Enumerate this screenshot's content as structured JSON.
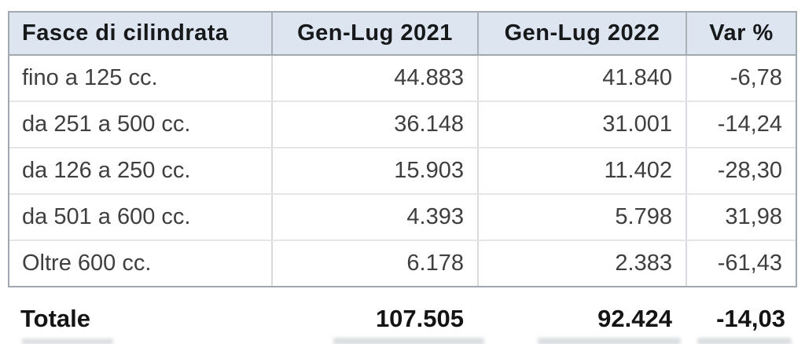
{
  "table": {
    "headers": {
      "category": "Fasce di cilindrata",
      "period1": "Gen-Lug 2021",
      "period2": "Gen-Lug 2022",
      "variation": "Var %"
    },
    "rows": [
      {
        "label": "fino a 125 cc.",
        "y2021": "44.883",
        "y2022": "41.840",
        "var": "-6,78"
      },
      {
        "label": "da 251 a 500 cc.",
        "y2021": "36.148",
        "y2022": "31.001",
        "var": "-14,24"
      },
      {
        "label": "da 126 a 250 cc.",
        "y2021": "15.903",
        "y2022": "11.402",
        "var": "-28,30"
      },
      {
        "label": "da 501 a 600 cc.",
        "y2021": "4.393",
        "y2022": "5.798",
        "var": "31,98"
      },
      {
        "label": "Oltre 600 cc.",
        "y2021": "6.178",
        "y2022": "2.383",
        "var": "-61,43"
      }
    ],
    "totals": {
      "label": "Totale",
      "y2021": "107.505",
      "y2022": "92.424",
      "var": "-14,03"
    }
  },
  "chart_data": {
    "type": "table",
    "title": "",
    "columns": [
      "Fasce di cilindrata",
      "Gen-Lug 2021",
      "Gen-Lug 2022",
      "Var %"
    ],
    "rows": [
      {
        "category": "fino a 125 cc.",
        "gen_lug_2021": 44883,
        "gen_lug_2022": 41840,
        "var_pct": -6.78
      },
      {
        "category": "da 251 a 500 cc.",
        "gen_lug_2021": 36148,
        "gen_lug_2022": 31001,
        "var_pct": -14.24
      },
      {
        "category": "da 126 a 250 cc.",
        "gen_lug_2021": 15903,
        "gen_lug_2022": 11402,
        "var_pct": -28.3
      },
      {
        "category": "da 501 a 600 cc.",
        "gen_lug_2021": 4393,
        "gen_lug_2022": 5798,
        "var_pct": 31.98
      },
      {
        "category": "Oltre 600 cc.",
        "gen_lug_2021": 6178,
        "gen_lug_2022": 2383,
        "var_pct": -61.43
      }
    ],
    "totals": {
      "category": "Totale",
      "gen_lug_2021": 107505,
      "gen_lug_2022": 92424,
      "var_pct": -14.03
    }
  },
  "colors": {
    "header_bg": "#dce5f0",
    "outer_border": "#a2a8b0",
    "inner_border": "#d8dadd",
    "row_separator": "#e4e5e7",
    "header_text": "#17181a",
    "body_text": "#3f3f3f",
    "totals_text": "#141414"
  }
}
